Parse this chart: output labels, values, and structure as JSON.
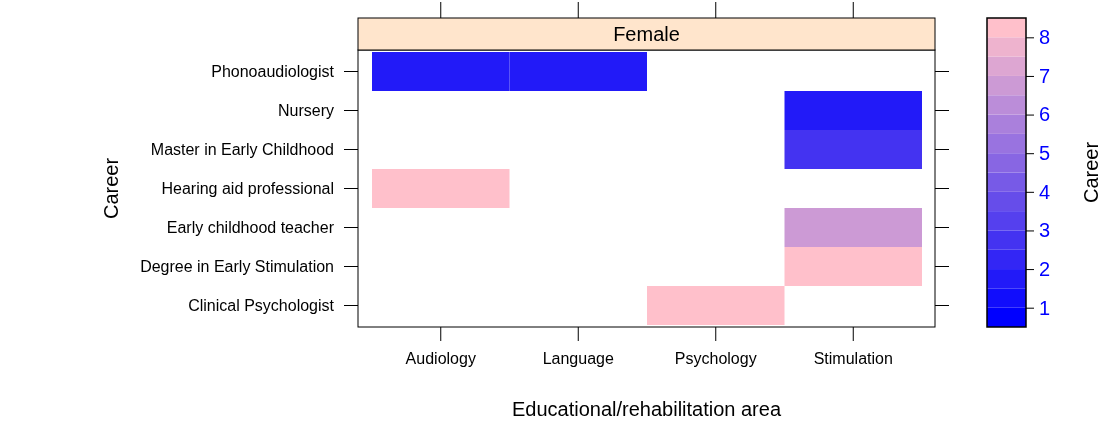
{
  "chart_data": {
    "type": "heatmap",
    "title": "Female",
    "xlabel": "Educational/rehabilitation area",
    "ylabel": "Career",
    "clabel": "Career",
    "categories": [
      "Audiology",
      "Language",
      "Psychology",
      "Stimulation"
    ],
    "y_categories": [
      "Phonoaudiologist",
      "Nursery",
      "Master in Early Childhood",
      "Hearing aid professional",
      "Early childhood teacher",
      "Degree in Early Stimulation",
      "Clinical Psychologist"
    ],
    "cells": [
      [
        1.5,
        1.5,
        null,
        null
      ],
      [
        null,
        null,
        null,
        1.5
      ],
      [
        null,
        null,
        null,
        2.5
      ],
      [
        8,
        null,
        null,
        null
      ],
      [
        null,
        null,
        null,
        6.5
      ],
      [
        null,
        null,
        null,
        8
      ],
      [
        null,
        null,
        8,
        null
      ]
    ],
    "clim": [
      0.5,
      8.5
    ],
    "cticks": [
      1,
      2,
      3,
      4,
      5,
      6,
      7,
      8
    ]
  }
}
